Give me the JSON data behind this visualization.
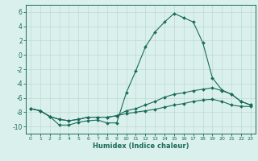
{
  "xlabel": "Humidex (Indice chaleur)",
  "x": [
    0,
    1,
    2,
    3,
    4,
    5,
    6,
    7,
    8,
    9,
    10,
    11,
    12,
    13,
    14,
    15,
    16,
    17,
    18,
    19,
    20,
    21,
    22,
    23
  ],
  "line1": [
    -7.5,
    -7.8,
    -8.6,
    -9.8,
    -9.8,
    -9.4,
    -9.2,
    -9.1,
    -9.5,
    -9.5,
    -5.3,
    -2.2,
    1.1,
    3.2,
    4.6,
    5.8,
    5.2,
    4.6,
    1.7,
    -3.2,
    -4.9,
    -5.5,
    -6.5,
    -7.0
  ],
  "line2": [
    -7.5,
    -7.8,
    -8.6,
    -9.0,
    -9.2,
    -9.0,
    -8.7,
    -8.7,
    -8.7,
    -8.5,
    -7.8,
    -7.5,
    -7.0,
    -6.5,
    -5.9,
    -5.5,
    -5.3,
    -5.0,
    -4.8,
    -4.6,
    -5.0,
    -5.5,
    -6.5,
    -7.0
  ],
  "line3": [
    -7.5,
    -7.8,
    -8.6,
    -9.0,
    -9.2,
    -9.0,
    -8.7,
    -8.7,
    -8.7,
    -8.5,
    -8.2,
    -8.0,
    -7.8,
    -7.6,
    -7.3,
    -7.0,
    -6.8,
    -6.5,
    -6.3,
    -6.2,
    -6.5,
    -7.0,
    -7.2,
    -7.2
  ],
  "line_color": "#1a6b5a",
  "bg_color": "#daf0ec",
  "grid_color": "#c0d8d2",
  "ylim": [
    -11,
    7
  ],
  "yticks": [
    -10,
    -8,
    -6,
    -4,
    -2,
    0,
    2,
    4,
    6
  ],
  "xlim": [
    -0.5,
    23.5
  ]
}
